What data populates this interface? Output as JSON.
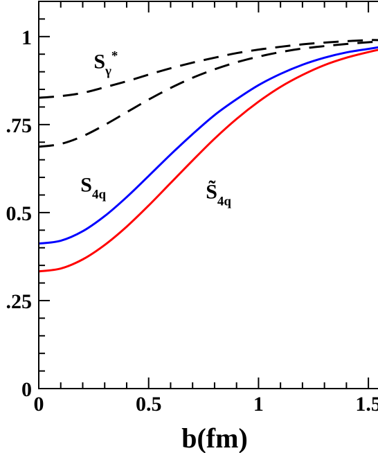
{
  "chart_data": {
    "type": "line",
    "title": "",
    "xlabel": "b(fm)",
    "ylabel": "",
    "xlim": [
      0,
      1.55
    ],
    "ylim": [
      0,
      1.1
    ],
    "x_ticks": [
      {
        "value": 0,
        "label": "0"
      },
      {
        "value": 0.5,
        "label": "0.5"
      },
      {
        "value": 1,
        "label": "1"
      },
      {
        "value": 1.5,
        "label": "1.5"
      }
    ],
    "y_ticks": [
      {
        "value": 0,
        "label": "0"
      },
      {
        "value": 0.25,
        "label": ".25"
      },
      {
        "value": 0.5,
        "label": "0.5"
      },
      {
        "value": 0.75,
        "label": ".75"
      },
      {
        "value": 1,
        "label": "1"
      }
    ],
    "grid": false,
    "legend": "none",
    "series": [
      {
        "color": "#000000",
        "dash": true,
        "x": [
          0,
          0.1,
          0.2,
          0.3,
          0.4,
          0.5,
          0.6,
          0.7,
          0.8,
          0.9,
          1.0,
          1.1,
          1.2,
          1.3,
          1.4,
          1.5,
          1.55
        ],
        "y": [
          0.826,
          0.831,
          0.84,
          0.856,
          0.873,
          0.892,
          0.91,
          0.926,
          0.94,
          0.953,
          0.963,
          0.971,
          0.978,
          0.983,
          0.987,
          0.99,
          0.99
        ]
      },
      {
        "color": "#000000",
        "dash": true,
        "x": [
          0,
          0.1,
          0.2,
          0.3,
          0.4,
          0.5,
          0.6,
          0.7,
          0.8,
          0.9,
          1.0,
          1.1,
          1.2,
          1.3,
          1.4,
          1.5,
          1.55
        ],
        "y": [
          0.687,
          0.695,
          0.717,
          0.749,
          0.785,
          0.821,
          0.854,
          0.883,
          0.907,
          0.927,
          0.943,
          0.956,
          0.966,
          0.973,
          0.979,
          0.984,
          0.985
        ]
      },
      {
        "color": "#0000ff",
        "dash": false,
        "x": [
          0,
          0.1,
          0.2,
          0.3,
          0.4,
          0.5,
          0.6,
          0.7,
          0.8,
          0.9,
          1.0,
          1.1,
          1.2,
          1.3,
          1.4,
          1.5,
          1.55
        ],
        "y": [
          0.412,
          0.42,
          0.447,
          0.49,
          0.544,
          0.604,
          0.665,
          0.723,
          0.777,
          0.822,
          0.862,
          0.894,
          0.92,
          0.94,
          0.955,
          0.965,
          0.97
        ]
      },
      {
        "color": "#ff0000",
        "dash": false,
        "x": [
          0,
          0.1,
          0.2,
          0.3,
          0.4,
          0.5,
          0.6,
          0.7,
          0.8,
          0.9,
          1.0,
          1.1,
          1.2,
          1.3,
          1.4,
          1.5,
          1.55
        ],
        "y": [
          0.333,
          0.341,
          0.367,
          0.408,
          0.46,
          0.52,
          0.584,
          0.648,
          0.71,
          0.766,
          0.815,
          0.857,
          0.891,
          0.919,
          0.94,
          0.956,
          0.963
        ]
      }
    ],
    "annotations": [
      {
        "base": "S",
        "sub": "γ",
        "sup": "*",
        "x": 0.25,
        "y": 0.91
      },
      {
        "base": "S",
        "sub": "4q",
        "x": 0.19,
        "y": 0.56
      },
      {
        "base": "S̃",
        "sub": "4q",
        "x": 0.76,
        "y": 0.54
      }
    ]
  }
}
